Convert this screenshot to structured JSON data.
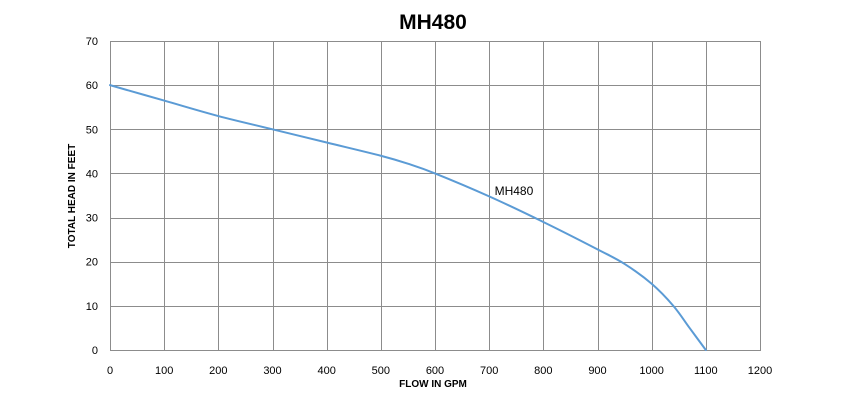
{
  "chart_data": {
    "type": "line",
    "title": "MH480",
    "xlabel": "FLOW IN GPM",
    "ylabel": "TOTAL HEAD IN FEET",
    "xlim": [
      0,
      1200
    ],
    "ylim": [
      0,
      70
    ],
    "x_ticks": [
      0,
      100,
      200,
      300,
      400,
      500,
      600,
      700,
      800,
      900,
      1000,
      1100,
      1200
    ],
    "y_ticks": [
      0,
      10,
      20,
      30,
      40,
      50,
      60,
      70
    ],
    "grid": true,
    "legend": "none",
    "series": [
      {
        "name": "MH480",
        "color": "#5b9bd5",
        "x": [
          0,
          100,
          200,
          300,
          400,
          500,
          550,
          600,
          700,
          800,
          900,
          950,
          1000,
          1040,
          1070,
          1100
        ],
        "y": [
          60,
          56.5,
          53,
          50,
          47,
          44,
          42.2,
          40,
          34.8,
          29,
          22.8,
          19.5,
          15,
          10,
          5,
          0
        ]
      }
    ],
    "annotations": [
      {
        "text": "MH480",
        "x": 710,
        "y": 36
      }
    ]
  }
}
